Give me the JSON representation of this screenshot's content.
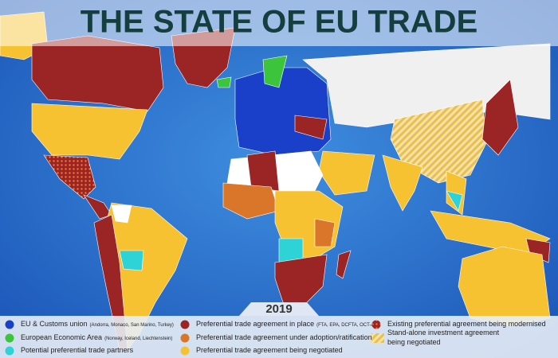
{
  "header": {
    "title": "THE STATE OF EU TRADE"
  },
  "legend": {
    "year": "2019",
    "items": [
      {
        "label": "EU & Customs union",
        "note": "(Andorra, Monaco, San Marino, Turkey)",
        "color": "#1a3fc8",
        "pattern": "solid"
      },
      {
        "label": "European Economic Area",
        "note": "(Norway, Iceland, Liechtenstein)",
        "color": "#3cc43c",
        "pattern": "solid"
      },
      {
        "label": "Potential preferential trade partners",
        "color": "#2ed3d8",
        "pattern": "solid"
      },
      {
        "label": "Preferential trade agreement in place",
        "note": "(FTA, EPA, DCFTA, OCT-AA)",
        "color": "#9b2424",
        "pattern": "solid"
      },
      {
        "label": "Preferential trade agreement under adoption/ratification",
        "color": "#d9762a",
        "pattern": "solid"
      },
      {
        "label": "Preferential trade agreement being negotiated",
        "color": "#f6c232",
        "pattern": "solid"
      },
      {
        "label": "Existing preferential agreement being modernised",
        "color": "#d82828",
        "pattern": "dots"
      },
      {
        "label": "Stand-alone investment agreement being negotiated",
        "color": "#f0cf6a",
        "pattern": "hatch"
      }
    ]
  }
}
